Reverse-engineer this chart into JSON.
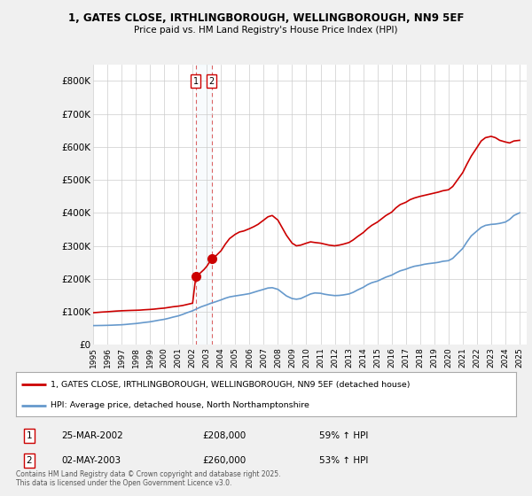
{
  "title1": "1, GATES CLOSE, IRTHLINGBOROUGH, WELLINGBOROUGH, NN9 5EF",
  "title2": "Price paid vs. HM Land Registry's House Price Index (HPI)",
  "legend_line1": "1, GATES CLOSE, IRTHLINGBOROUGH, WELLINGBOROUGH, NN9 5EF (detached house)",
  "legend_line2": "HPI: Average price, detached house, North Northamptonshire",
  "footnote": "Contains HM Land Registry data © Crown copyright and database right 2025.\nThis data is licensed under the Open Government Licence v3.0.",
  "sale1_label": "1",
  "sale1_date": "25-MAR-2002",
  "sale1_price": "£208,000",
  "sale1_hpi": "59% ↑ HPI",
  "sale2_label": "2",
  "sale2_date": "02-MAY-2003",
  "sale2_price": "£260,000",
  "sale2_hpi": "53% ↑ HPI",
  "sale1_x": 2002.23,
  "sale1_y": 208000,
  "sale2_x": 2003.33,
  "sale2_y": 260000,
  "vline1_x": 2002.23,
  "vline2_x": 2003.33,
  "property_color": "#cc0000",
  "hpi_color": "#6699cc",
  "vline_color": "#cc0000",
  "background_color": "#f0f0f0",
  "plot_bg_color": "#ffffff",
  "grid_color": "#cccccc",
  "ylim": [
    0,
    850000
  ],
  "xlim_start": 1995.0,
  "xlim_end": 2025.5,
  "yticks": [
    0,
    100000,
    200000,
    300000,
    400000,
    500000,
    600000,
    700000,
    800000
  ],
  "ytick_labels": [
    "£0",
    "£100K",
    "£200K",
    "£300K",
    "£400K",
    "£500K",
    "£600K",
    "£700K",
    "£800K"
  ],
  "xticks": [
    1995,
    1996,
    1997,
    1998,
    1999,
    2000,
    2001,
    2002,
    2003,
    2004,
    2005,
    2006,
    2007,
    2008,
    2009,
    2010,
    2011,
    2012,
    2013,
    2014,
    2015,
    2016,
    2017,
    2018,
    2019,
    2020,
    2021,
    2022,
    2023,
    2024,
    2025
  ],
  "property_data": [
    [
      1995.0,
      97000
    ],
    [
      1995.3,
      98000
    ],
    [
      1995.6,
      99000
    ],
    [
      1996.0,
      100000
    ],
    [
      1996.3,
      101000
    ],
    [
      1996.6,
      102000
    ],
    [
      1997.0,
      103000
    ],
    [
      1997.3,
      103500
    ],
    [
      1997.6,
      104000
    ],
    [
      1998.0,
      104500
    ],
    [
      1998.3,
      105000
    ],
    [
      1998.6,
      106000
    ],
    [
      1999.0,
      107000
    ],
    [
      1999.3,
      108000
    ],
    [
      1999.6,
      109500
    ],
    [
      2000.0,
      111000
    ],
    [
      2000.3,
      113000
    ],
    [
      2000.6,
      115000
    ],
    [
      2001.0,
      117000
    ],
    [
      2001.3,
      119000
    ],
    [
      2001.6,
      122000
    ],
    [
      2002.0,
      126000
    ],
    [
      2002.23,
      208000
    ],
    [
      2002.5,
      216000
    ],
    [
      2002.8,
      228000
    ],
    [
      2003.0,
      238000
    ],
    [
      2003.33,
      260000
    ],
    [
      2003.6,
      268000
    ],
    [
      2004.0,
      285000
    ],
    [
      2004.3,
      305000
    ],
    [
      2004.6,
      322000
    ],
    [
      2005.0,
      335000
    ],
    [
      2005.3,
      342000
    ],
    [
      2005.6,
      345000
    ],
    [
      2006.0,
      352000
    ],
    [
      2006.3,
      358000
    ],
    [
      2006.6,
      365000
    ],
    [
      2007.0,
      378000
    ],
    [
      2007.3,
      388000
    ],
    [
      2007.6,
      392000
    ],
    [
      2008.0,
      378000
    ],
    [
      2008.3,
      355000
    ],
    [
      2008.6,
      332000
    ],
    [
      2009.0,
      308000
    ],
    [
      2009.3,
      300000
    ],
    [
      2009.6,
      302000
    ],
    [
      2010.0,
      308000
    ],
    [
      2010.3,
      312000
    ],
    [
      2010.6,
      310000
    ],
    [
      2011.0,
      308000
    ],
    [
      2011.3,
      305000
    ],
    [
      2011.6,
      302000
    ],
    [
      2012.0,
      300000
    ],
    [
      2012.3,
      302000
    ],
    [
      2012.6,
      305000
    ],
    [
      2013.0,
      310000
    ],
    [
      2013.3,
      318000
    ],
    [
      2013.6,
      328000
    ],
    [
      2014.0,
      340000
    ],
    [
      2014.3,
      352000
    ],
    [
      2014.6,
      362000
    ],
    [
      2015.0,
      372000
    ],
    [
      2015.3,
      382000
    ],
    [
      2015.6,
      392000
    ],
    [
      2016.0,
      402000
    ],
    [
      2016.3,
      415000
    ],
    [
      2016.6,
      425000
    ],
    [
      2017.0,
      432000
    ],
    [
      2017.3,
      440000
    ],
    [
      2017.6,
      445000
    ],
    [
      2018.0,
      450000
    ],
    [
      2018.3,
      453000
    ],
    [
      2018.6,
      456000
    ],
    [
      2019.0,
      460000
    ],
    [
      2019.3,
      463000
    ],
    [
      2019.6,
      467000
    ],
    [
      2020.0,
      470000
    ],
    [
      2020.3,
      480000
    ],
    [
      2020.6,
      498000
    ],
    [
      2021.0,
      522000
    ],
    [
      2021.3,
      548000
    ],
    [
      2021.6,
      572000
    ],
    [
      2022.0,
      598000
    ],
    [
      2022.3,
      618000
    ],
    [
      2022.6,
      628000
    ],
    [
      2023.0,
      632000
    ],
    [
      2023.3,
      628000
    ],
    [
      2023.6,
      620000
    ],
    [
      2024.0,
      615000
    ],
    [
      2024.3,
      612000
    ],
    [
      2024.6,
      618000
    ],
    [
      2025.0,
      620000
    ]
  ],
  "hpi_data": [
    [
      1995.0,
      58000
    ],
    [
      1995.3,
      58200
    ],
    [
      1995.6,
      58400
    ],
    [
      1996.0,
      58800
    ],
    [
      1996.3,
      59200
    ],
    [
      1996.6,
      59800
    ],
    [
      1997.0,
      60500
    ],
    [
      1997.3,
      61500
    ],
    [
      1997.6,
      62800
    ],
    [
      1998.0,
      64200
    ],
    [
      1998.3,
      65800
    ],
    [
      1998.6,
      67500
    ],
    [
      1999.0,
      69500
    ],
    [
      1999.3,
      71800
    ],
    [
      1999.6,
      74200
    ],
    [
      2000.0,
      77000
    ],
    [
      2000.3,
      80000
    ],
    [
      2000.6,
      83500
    ],
    [
      2001.0,
      87500
    ],
    [
      2001.3,
      92000
    ],
    [
      2001.6,
      97000
    ],
    [
      2002.0,
      103000
    ],
    [
      2002.3,
      109000
    ],
    [
      2002.6,
      115000
    ],
    [
      2003.0,
      121000
    ],
    [
      2003.3,
      126000
    ],
    [
      2003.6,
      130000
    ],
    [
      2004.0,
      136000
    ],
    [
      2004.3,
      141000
    ],
    [
      2004.6,
      145000
    ],
    [
      2005.0,
      148000
    ],
    [
      2005.3,
      150000
    ],
    [
      2005.6,
      152000
    ],
    [
      2006.0,
      155000
    ],
    [
      2006.3,
      159000
    ],
    [
      2006.6,
      163000
    ],
    [
      2007.0,
      168000
    ],
    [
      2007.3,
      172000
    ],
    [
      2007.6,
      173000
    ],
    [
      2008.0,
      168000
    ],
    [
      2008.3,
      158000
    ],
    [
      2008.6,
      148000
    ],
    [
      2009.0,
      140000
    ],
    [
      2009.3,
      138000
    ],
    [
      2009.6,
      140000
    ],
    [
      2010.0,
      148000
    ],
    [
      2010.3,
      154000
    ],
    [
      2010.6,
      157000
    ],
    [
      2011.0,
      156000
    ],
    [
      2011.3,
      153000
    ],
    [
      2011.6,
      151000
    ],
    [
      2012.0,
      149000
    ],
    [
      2012.3,
      149500
    ],
    [
      2012.6,
      151000
    ],
    [
      2013.0,
      154000
    ],
    [
      2013.3,
      159000
    ],
    [
      2013.6,
      166000
    ],
    [
      2014.0,
      174000
    ],
    [
      2014.3,
      182000
    ],
    [
      2014.6,
      188000
    ],
    [
      2015.0,
      193000
    ],
    [
      2015.3,
      199000
    ],
    [
      2015.6,
      205000
    ],
    [
      2016.0,
      211000
    ],
    [
      2016.3,
      218000
    ],
    [
      2016.6,
      224000
    ],
    [
      2017.0,
      229000
    ],
    [
      2017.3,
      234000
    ],
    [
      2017.6,
      238000
    ],
    [
      2018.0,
      241000
    ],
    [
      2018.3,
      244000
    ],
    [
      2018.6,
      246000
    ],
    [
      2019.0,
      248000
    ],
    [
      2019.3,
      250000
    ],
    [
      2019.6,
      253000
    ],
    [
      2020.0,
      255000
    ],
    [
      2020.3,
      262000
    ],
    [
      2020.6,
      275000
    ],
    [
      2021.0,
      292000
    ],
    [
      2021.3,
      312000
    ],
    [
      2021.6,
      330000
    ],
    [
      2022.0,
      345000
    ],
    [
      2022.3,
      356000
    ],
    [
      2022.6,
      362000
    ],
    [
      2023.0,
      365000
    ],
    [
      2023.3,
      366000
    ],
    [
      2023.6,
      368000
    ],
    [
      2024.0,
      372000
    ],
    [
      2024.3,
      380000
    ],
    [
      2024.6,
      392000
    ],
    [
      2025.0,
      400000
    ]
  ]
}
